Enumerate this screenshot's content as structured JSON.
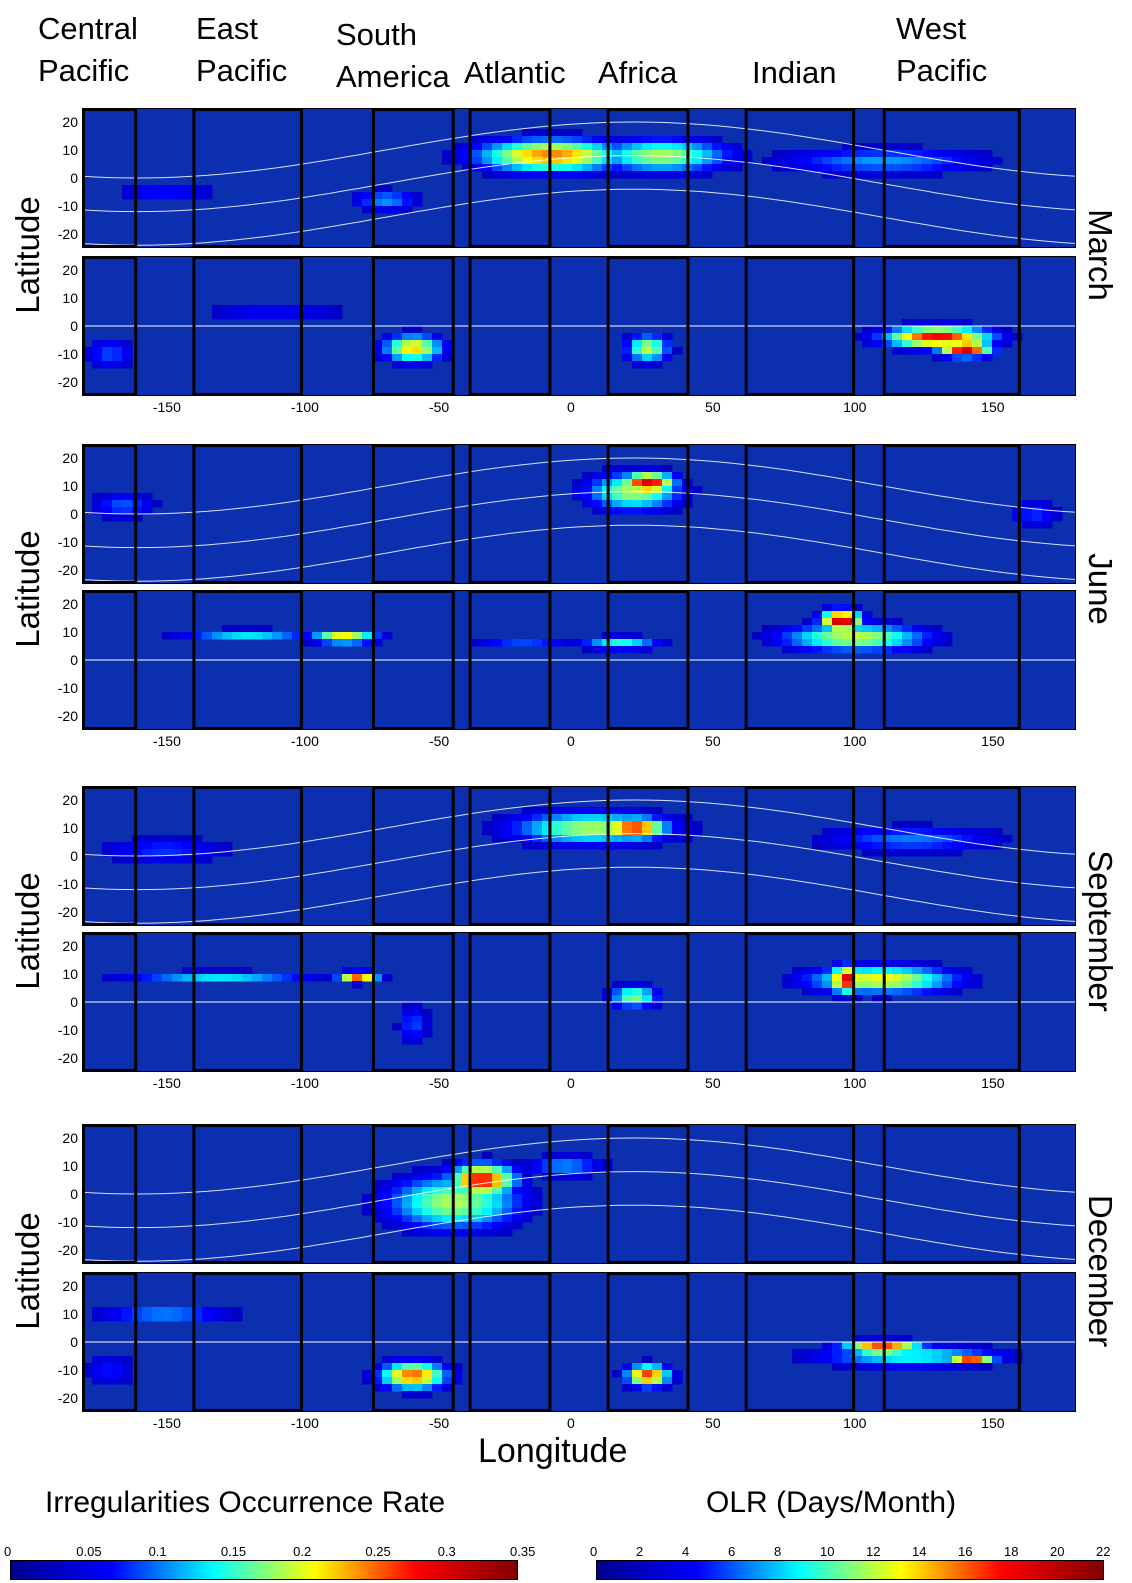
{
  "regions": [
    {
      "name": "Central\nPacific"
    },
    {
      "name": "East\nPacific"
    },
    {
      "name": "South\nAmerica"
    },
    {
      "name": "Atlantic"
    },
    {
      "name": "Africa"
    },
    {
      "name": "Indian"
    },
    {
      "name": "West\nPacific"
    }
  ],
  "y_axis_label": "Latitude",
  "x_axis_label": "Longitude",
  "months": [
    "March",
    "June",
    "September",
    "December"
  ],
  "colorbars": [
    {
      "title": "Irregularities Occurrence Rate",
      "ticks": [
        "0",
        "0.05",
        "0.1",
        "0.15",
        "0.2",
        "0.25",
        "0.3",
        "0.35"
      ]
    },
    {
      "title": "OLR (Days/Month)",
      "ticks": [
        "0",
        "2",
        "4",
        "6",
        "8",
        "10",
        "12",
        "14",
        "16",
        "18",
        "20",
        "22"
      ]
    }
  ],
  "chart_data": {
    "type": "heatmap",
    "x_ticks": [
      "-150",
      "-100",
      "-50",
      "0",
      "50",
      "100",
      "150"
    ],
    "y_ticks": [
      "20",
      "10",
      "0",
      "-10",
      "-20"
    ],
    "xlim": [
      -180,
      180
    ],
    "ylim": [
      -25,
      25
    ],
    "region_boxes_lon": [
      [
        -180,
        -160
      ],
      [
        -140,
        -100
      ],
      [
        -75,
        -45
      ],
      [
        -40,
        -10
      ],
      [
        10,
        40
      ],
      [
        60,
        100
      ],
      [
        110,
        160
      ]
    ],
    "colormap": [
      "#00008f",
      "#0000ff",
      "#00ffff",
      "#ffff00",
      "#ff0000",
      "#800000"
    ],
    "panels": [
      {
        "month": "March",
        "kind": "irregularities",
        "hotspots": [
          {
            "lon": -10,
            "lat": 8,
            "wlon": 55,
            "wlat": 12,
            "v": 0.26
          },
          {
            "lon": 30,
            "lat": 8,
            "wlon": 50,
            "wlat": 12,
            "v": 0.2
          },
          {
            "lon": 110,
            "lat": 6,
            "wlon": 80,
            "wlat": 10,
            "v": 0.12
          },
          {
            "lon": -70,
            "lat": -8,
            "wlon": 25,
            "wlat": 8,
            "v": 0.12
          },
          {
            "lon": -150,
            "lat": -5,
            "wlon": 40,
            "wlat": 8,
            "v": 0.08
          }
        ]
      },
      {
        "month": "March",
        "kind": "olr",
        "hotspots": [
          {
            "lon": -60,
            "lat": -8,
            "wlon": 22,
            "wlat": 10,
            "v": 15
          },
          {
            "lon": 25,
            "lat": -8,
            "wlon": 16,
            "wlat": 10,
            "v": 13
          },
          {
            "lon": 130,
            "lat": -4,
            "wlon": 40,
            "wlat": 8,
            "v": 19
          },
          {
            "lon": 140,
            "lat": -8,
            "wlon": 20,
            "wlat": 6,
            "v": 21
          },
          {
            "lon": -110,
            "lat": 5,
            "wlon": 60,
            "wlat": 4,
            "v": 6
          },
          {
            "lon": -170,
            "lat": -10,
            "wlon": 20,
            "wlat": 12,
            "v": 6
          }
        ]
      },
      {
        "month": "June",
        "kind": "irregularities",
        "hotspots": [
          {
            "lon": 25,
            "lat": 11,
            "wlon": 20,
            "wlat": 8,
            "v": 0.32
          },
          {
            "lon": 20,
            "lat": 8,
            "wlon": 35,
            "wlat": 14,
            "v": 0.2
          },
          {
            "lon": -165,
            "lat": 3,
            "wlon": 25,
            "wlat": 10,
            "v": 0.1
          },
          {
            "lon": 165,
            "lat": 0,
            "wlon": 20,
            "wlat": 10,
            "v": 0.09
          }
        ]
      },
      {
        "month": "June",
        "kind": "olr",
        "hotspots": [
          {
            "lon": 95,
            "lat": 14,
            "wlon": 15,
            "wlat": 8,
            "v": 21
          },
          {
            "lon": 100,
            "lat": 8,
            "wlon": 55,
            "wlat": 10,
            "v": 13
          },
          {
            "lon": -85,
            "lat": 8,
            "wlon": 25,
            "wlat": 4,
            "v": 16
          },
          {
            "lon": -120,
            "lat": 9,
            "wlon": 50,
            "wlat": 4,
            "v": 9
          },
          {
            "lon": 15,
            "lat": 6,
            "wlon": 30,
            "wlat": 5,
            "v": 10
          },
          {
            "lon": -20,
            "lat": 6,
            "wlon": 40,
            "wlat": 4,
            "v": 6
          }
        ]
      },
      {
        "month": "September",
        "kind": "irregularities",
        "hotspots": [
          {
            "lon": 20,
            "lat": 10,
            "wlon": 25,
            "wlat": 8,
            "v": 0.3
          },
          {
            "lon": 5,
            "lat": 10,
            "wlon": 60,
            "wlat": 12,
            "v": 0.2
          },
          {
            "lon": 120,
            "lat": 6,
            "wlon": 70,
            "wlat": 10,
            "v": 0.11
          },
          {
            "lon": -150,
            "lat": 2,
            "wlon": 50,
            "wlat": 10,
            "v": 0.09
          }
        ]
      },
      {
        "month": "September",
        "kind": "olr",
        "hotspots": [
          {
            "lon": 97,
            "lat": 8,
            "wlon": 12,
            "wlat": 10,
            "v": 20
          },
          {
            "lon": 110,
            "lat": 8,
            "wlon": 55,
            "wlat": 10,
            "v": 14
          },
          {
            "lon": -80,
            "lat": 9,
            "wlon": 15,
            "wlat": 4,
            "v": 17
          },
          {
            "lon": -130,
            "lat": 9,
            "wlon": 70,
            "wlat": 4,
            "v": 9
          },
          {
            "lon": 20,
            "lat": 2,
            "wlon": 18,
            "wlat": 8,
            "v": 12
          },
          {
            "lon": -60,
            "lat": -8,
            "wlon": 12,
            "wlat": 15,
            "v": 6
          }
        ]
      },
      {
        "month": "December",
        "kind": "irregularities",
        "hotspots": [
          {
            "lon": -35,
            "lat": 5,
            "wlon": 25,
            "wlat": 12,
            "v": 0.3
          },
          {
            "lon": -45,
            "lat": -3,
            "wlon": 50,
            "wlat": 20,
            "v": 0.2
          },
          {
            "lon": -5,
            "lat": 10,
            "wlon": 30,
            "wlat": 8,
            "v": 0.12
          }
        ]
      },
      {
        "month": "December",
        "kind": "olr",
        "hotspots": [
          {
            "lon": -60,
            "lat": -12,
            "wlon": 25,
            "wlat": 10,
            "v": 17
          },
          {
            "lon": 25,
            "lat": -12,
            "wlon": 16,
            "wlat": 8,
            "v": 18
          },
          {
            "lon": 110,
            "lat": -2,
            "wlon": 30,
            "wlat": 5,
            "v": 19
          },
          {
            "lon": 142,
            "lat": -6,
            "wlon": 18,
            "wlat": 4,
            "v": 18
          },
          {
            "lon": 120,
            "lat": -5,
            "wlon": 70,
            "wlat": 8,
            "v": 10
          },
          {
            "lon": -150,
            "lat": 10,
            "wlon": 50,
            "wlat": 6,
            "v": 8
          },
          {
            "lon": -170,
            "lat": -10,
            "wlon": 20,
            "wlat": 12,
            "v": 5
          }
        ]
      }
    ]
  }
}
